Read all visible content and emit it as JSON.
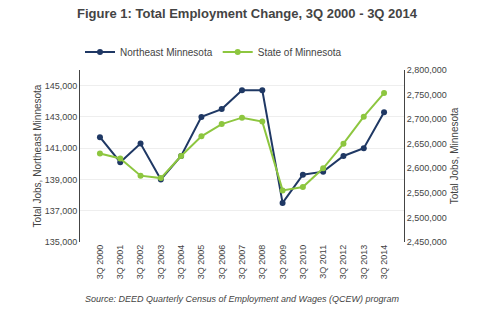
{
  "chart_data": {
    "type": "line",
    "title": "Figure 1: Total Employment Change, 3Q 2000 - 3Q 2014",
    "annotations": [
      "Source: DEED Quarterly Census of Employment and Wages (QCEW) program"
    ],
    "ylabel": "Total Jobs, Northeast Minnesota",
    "y2label": "Total Jobs, Minnesota",
    "categories": [
      "3Q 2000",
      "3Q 2001",
      "3Q 2002",
      "3Q 2003",
      "3Q 2004",
      "3Q 2005",
      "3Q 2006",
      "3Q 2007",
      "3Q 2008",
      "3Q 2009",
      "3Q 2010",
      "3Q 2011",
      "3Q 2012",
      "3Q 2013",
      "3Q 2014"
    ],
    "series": [
      {
        "name": "Northeast Minnesota",
        "color": "#1f3864",
        "marker": "circle",
        "values": [
          141700,
          140100,
          141300,
          139000,
          140500,
          143000,
          143500,
          144700,
          144700,
          137500,
          139300,
          139500,
          140500,
          141000,
          143300
        ]
      },
      {
        "name": "State of Minnesota",
        "color": "#8dc63f",
        "marker": "circle",
        "axis": "y2",
        "values": [
          2630000,
          2620000,
          2585000,
          2580000,
          2625000,
          2665000,
          2690000,
          2703000,
          2695000,
          2555000,
          2562000,
          2600000,
          2650000,
          2705000,
          2753000
        ]
      }
    ],
    "ylim": [
      135000,
      146000
    ],
    "yticks": [
      {
        "value": 135000,
        "label": "135,000"
      },
      {
        "value": 137000,
        "label": "137,000"
      },
      {
        "value": 139000,
        "label": "139,000"
      },
      {
        "value": 141000,
        "label": "141,000"
      },
      {
        "value": 143000,
        "label": "143,000"
      },
      {
        "value": 145000,
        "label": "145,000"
      }
    ],
    "y2lim": [
      2450000,
      2800000
    ],
    "y2ticks": [
      {
        "value": 2450000,
        "label": "2,450,000"
      },
      {
        "value": 2500000,
        "label": "2,500,000"
      },
      {
        "value": 2550000,
        "label": "2,550,000"
      },
      {
        "value": 2600000,
        "label": "2,600,000"
      },
      {
        "value": 2650000,
        "label": "2,650,000"
      },
      {
        "value": 2700000,
        "label": "2,700,000"
      },
      {
        "value": 2750000,
        "label": "2,750,000"
      },
      {
        "value": 2800000,
        "label": "2,800,000"
      }
    ],
    "grid": true,
    "legend": "top"
  }
}
